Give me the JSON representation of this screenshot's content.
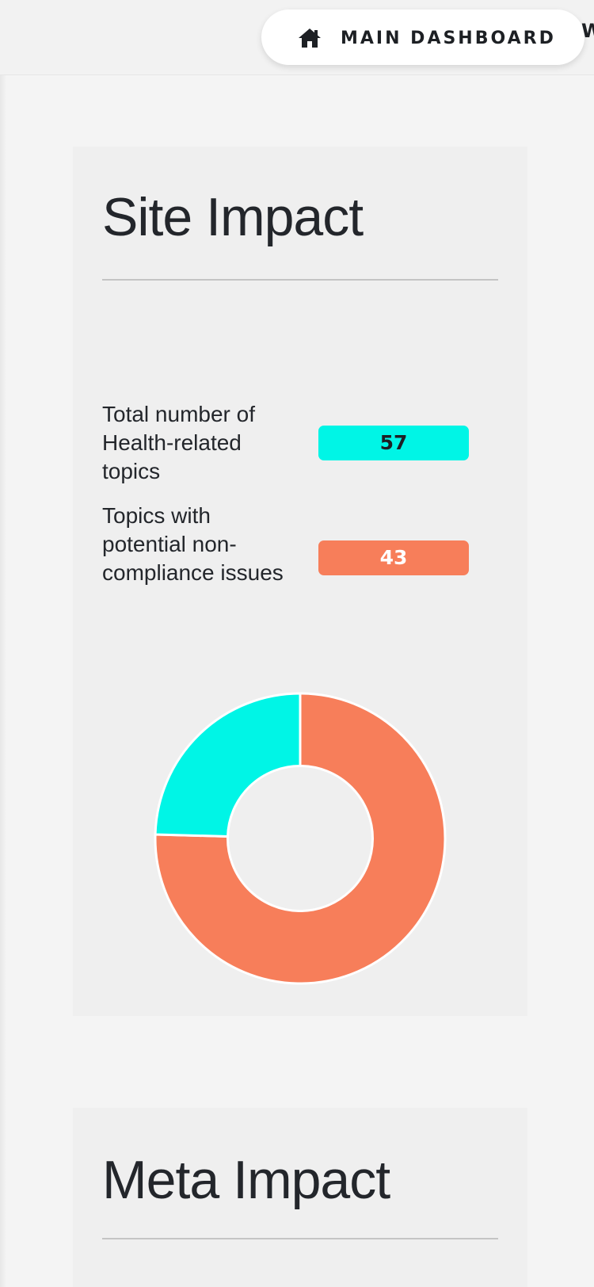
{
  "nav": {
    "main_dashboard_label": "MAIN DASHBOARD",
    "overflow_label": "W",
    "home_icon": "home-icon"
  },
  "site_impact": {
    "title": "Site Impact",
    "stats": [
      {
        "label": "Total number of Health-related topics",
        "value": "57",
        "color": "#00f5e6"
      },
      {
        "label": "Topics with potential non-compliance issues",
        "value": "43",
        "color": "#f77e5a"
      }
    ]
  },
  "chart_data": {
    "type": "pie",
    "hole": 0.5,
    "slices": [
      {
        "label": "Topics with potential non-compliance issues",
        "value": 43,
        "color": "#f77e5a"
      },
      {
        "label": "Total number of Health-related topics",
        "value": 14,
        "color": "#00f5e6"
      }
    ],
    "start": "top, clockwise",
    "legend": "none"
  },
  "meta_impact": {
    "title": "Meta Impact"
  },
  "colors": {
    "background": "#f4f4f4",
    "card": "#efefef",
    "accent_cyan": "#00f5e6",
    "accent_orange": "#f77e5a",
    "text": "#23262b"
  }
}
